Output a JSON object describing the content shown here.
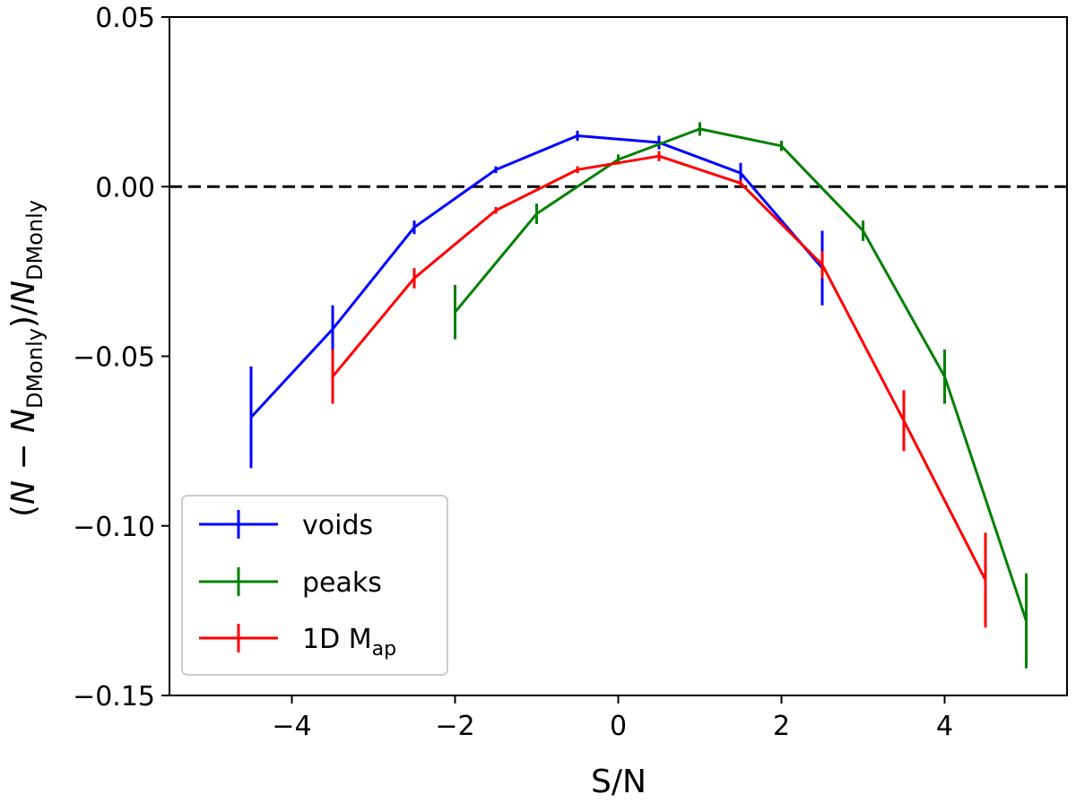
{
  "chart_data": {
    "type": "line",
    "title": "",
    "xlabel": "S/N",
    "ylabel_parts": {
      "open": "(",
      "N1": "N",
      "minus": " − ",
      "N2": "N",
      "sub": "DMonly",
      "mid": ")/",
      "N3": "N",
      "sub2": "DMonly"
    },
    "xlim": [
      -5.5,
      5.5
    ],
    "ylim": [
      -0.15,
      0.05
    ],
    "xticks": [
      -4,
      -2,
      0,
      2,
      4
    ],
    "xtick_labels": [
      "−4",
      "−2",
      "0",
      "2",
      "4"
    ],
    "yticks": [
      -0.15,
      -0.1,
      -0.05,
      0.0,
      0.05
    ],
    "ytick_labels": [
      "−0.15",
      "−0.10",
      "−0.05",
      "0.00",
      "0.05"
    ],
    "reference_line": {
      "y": 0.0,
      "style": "dashed",
      "color": "#000000"
    },
    "legend_position": "lower-left",
    "series": [
      {
        "name": "voids",
        "legend_label": "voids",
        "color": "#0000ff",
        "x": [
          -4.5,
          -3.5,
          -2.5,
          -1.5,
          -0.5,
          0.5,
          1.5,
          2.5
        ],
        "y": [
          -0.068,
          -0.042,
          -0.012,
          0.005,
          0.015,
          0.013,
          0.004,
          -0.024
        ],
        "err": [
          0.015,
          0.007,
          0.002,
          0.001,
          0.0015,
          0.002,
          0.003,
          0.011
        ]
      },
      {
        "name": "peaks",
        "legend_label": "peaks",
        "color": "#008000",
        "x": [
          -2.0,
          -1.0,
          0.0,
          1.0,
          2.0,
          3.0,
          4.0,
          5.0
        ],
        "y": [
          -0.037,
          -0.008,
          0.008,
          0.017,
          0.012,
          -0.013,
          -0.056,
          -0.128
        ],
        "err": [
          0.008,
          0.003,
          0.0015,
          0.002,
          0.0015,
          0.003,
          0.008,
          0.014
        ]
      },
      {
        "name": "1D Map",
        "legend_label": "1D M",
        "legend_sub": "ap",
        "color": "#ff0000",
        "x": [
          -3.5,
          -2.5,
          -1.5,
          -0.5,
          0.5,
          1.5,
          2.5,
          3.5,
          4.5
        ],
        "y": [
          -0.056,
          -0.027,
          -0.007,
          0.005,
          0.009,
          0.001,
          -0.023,
          -0.069,
          -0.116
        ],
        "err": [
          0.008,
          0.003,
          0.001,
          0.001,
          0.0015,
          0.001,
          0.004,
          0.009,
          0.014
        ]
      }
    ]
  }
}
